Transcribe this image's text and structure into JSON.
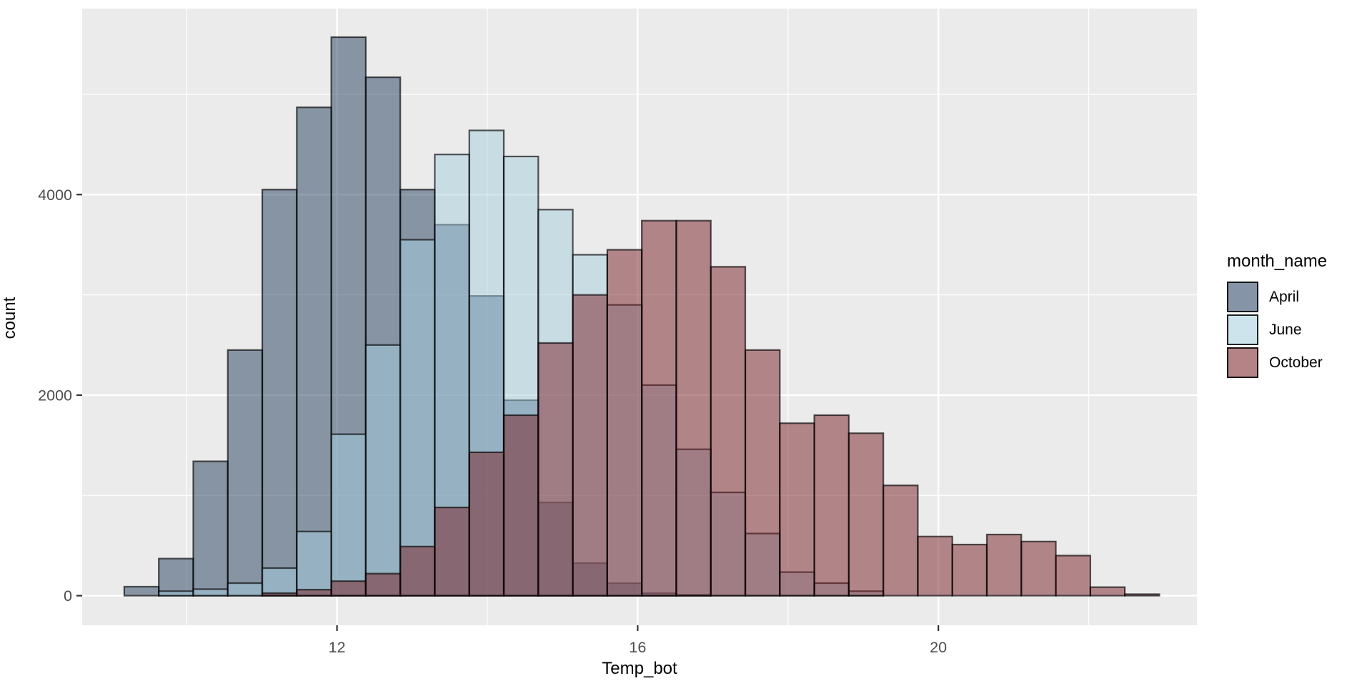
{
  "chart_data": {
    "type": "bar",
    "subtype": "overlaid-histogram",
    "title": "",
    "xlabel": "Temp_bot",
    "ylabel": "count",
    "x_axis": {
      "major_ticks": [
        12,
        16,
        20
      ],
      "minor_ticks": [
        10,
        14,
        18,
        22
      ],
      "range": [
        8.61,
        23.44
      ]
    },
    "y_axis": {
      "major_ticks": [
        0,
        2000,
        4000
      ],
      "minor_ticks": [
        1000,
        3000,
        5000
      ],
      "range": [
        -295,
        5855
      ]
    },
    "bins": {
      "start": 9.17,
      "width": 0.459,
      "count": 30
    },
    "fill_alpha": 0.5,
    "outline_color": "#000000",
    "panel_background": "#ebebeb",
    "grid_color": "#ffffff",
    "tick_label_color": "#4d4d4d",
    "tick_mark_color": "#333333",
    "legend": {
      "title": "month_name",
      "position": "right"
    },
    "series": [
      {
        "name": "April",
        "color": "#213d5d",
        "values": [
          90,
          370,
          1340,
          2450,
          4050,
          4870,
          5570,
          5170,
          4050,
          3700,
          2990,
          1950,
          930,
          325,
          125,
          25,
          10,
          0,
          0,
          0,
          0,
          0,
          0,
          0,
          0,
          0,
          0,
          0,
          0,
          0
        ]
      },
      {
        "name": "June",
        "color": "#a6cedd",
        "values": [
          0,
          45,
          65,
          125,
          275,
          640,
          1610,
          2500,
          3550,
          4400,
          4640,
          4380,
          3850,
          3400,
          2900,
          2100,
          1460,
          1030,
          620,
          235,
          125,
          45,
          0,
          0,
          0,
          0,
          0,
          0,
          0,
          0
        ]
      },
      {
        "name": "October",
        "color": "#771d23",
        "values": [
          0,
          0,
          0,
          0,
          25,
          60,
          145,
          220,
          490,
          880,
          1430,
          1800,
          2520,
          3000,
          3450,
          3740,
          3740,
          3280,
          2450,
          1720,
          1800,
          1620,
          1100,
          590,
          510,
          610,
          540,
          400,
          85,
          15
        ]
      }
    ]
  }
}
